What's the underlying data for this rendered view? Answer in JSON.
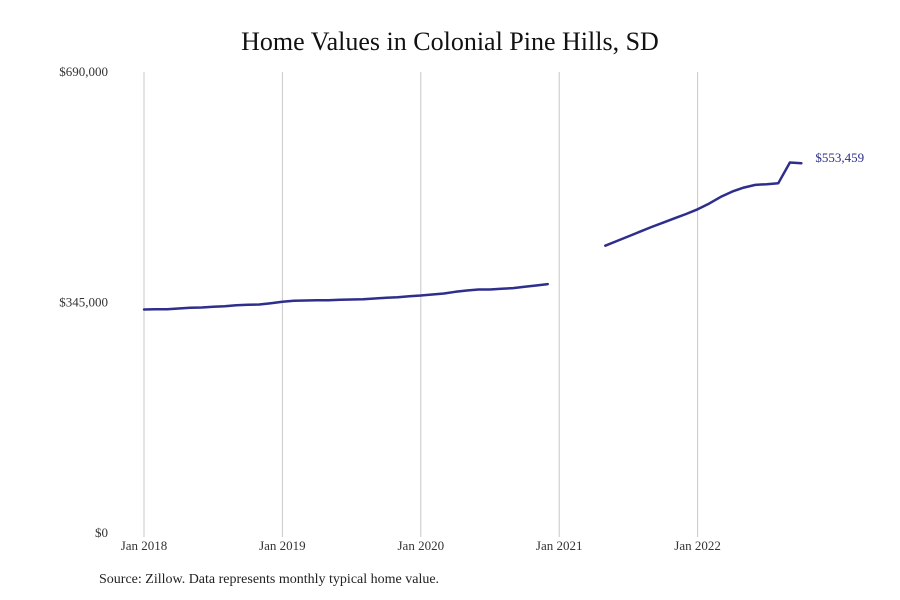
{
  "chart_data": {
    "type": "line",
    "title": "Home Values in Colonial Pine Hills, SD",
    "xlabel": "",
    "ylabel": "",
    "y_ticks": [
      "$0",
      "$345,000",
      "$690,000"
    ],
    "ylim": [
      0,
      690000
    ],
    "x_ticks": [
      "Jan 2018",
      "Jan 2019",
      "Jan 2020",
      "Jan 2021",
      "Jan 2022"
    ],
    "grid": "vertical",
    "series": [
      {
        "color": "#2e2e8c",
        "end_label": "$553,459",
        "segments": [
          [
            [
              "2018-01",
              334500
            ],
            [
              "2018-02",
              335000
            ],
            [
              "2018-03",
              335000
            ],
            [
              "2018-04",
              336000
            ],
            [
              "2018-05",
              337000
            ],
            [
              "2018-06",
              337500
            ],
            [
              "2018-07",
              338500
            ],
            [
              "2018-08",
              339500
            ],
            [
              "2018-09",
              341000
            ],
            [
              "2018-10",
              341500
            ],
            [
              "2018-11",
              342000
            ],
            [
              "2018-12",
              344000
            ],
            [
              "2019-01",
              346000
            ],
            [
              "2019-02",
              347500
            ],
            [
              "2019-03",
              348000
            ],
            [
              "2019-04",
              348500
            ],
            [
              "2019-05",
              348500
            ],
            [
              "2019-06",
              349000
            ],
            [
              "2019-07",
              349500
            ],
            [
              "2019-08",
              350000
            ],
            [
              "2019-09",
              351000
            ],
            [
              "2019-10",
              352000
            ],
            [
              "2019-11",
              353000
            ],
            [
              "2019-12",
              354500
            ],
            [
              "2020-01",
              355500
            ],
            [
              "2020-02",
              357000
            ],
            [
              "2020-03",
              358500
            ],
            [
              "2020-04",
              361000
            ],
            [
              "2020-05",
              363000
            ],
            [
              "2020-06",
              364500
            ],
            [
              "2020-07",
              364500
            ],
            [
              "2020-08",
              365500
            ],
            [
              "2020-09",
              366500
            ],
            [
              "2020-10",
              368500
            ],
            [
              "2020-11",
              370500
            ],
            [
              "2020-12",
              372500
            ]
          ],
          [
            [
              "2021-05",
              430000
            ],
            [
              "2021-06",
              437000
            ],
            [
              "2021-07",
              444000
            ],
            [
              "2021-08",
              451000
            ],
            [
              "2021-09",
              458000
            ],
            [
              "2021-10",
              464500
            ],
            [
              "2021-11",
              471000
            ],
            [
              "2021-12",
              477500
            ],
            [
              "2022-01",
              484500
            ],
            [
              "2022-02",
              493000
            ],
            [
              "2022-03",
              503000
            ],
            [
              "2022-04",
              511000
            ],
            [
              "2022-05",
              517000
            ],
            [
              "2022-06",
              521000
            ],
            [
              "2022-07",
              522000
            ],
            [
              "2022-08",
              523500
            ],
            [
              "2022-09",
              554500
            ],
            [
              "2022-10",
              553459
            ]
          ]
        ]
      }
    ]
  },
  "source_note": "Source: Zillow. Data represents monthly typical home value."
}
